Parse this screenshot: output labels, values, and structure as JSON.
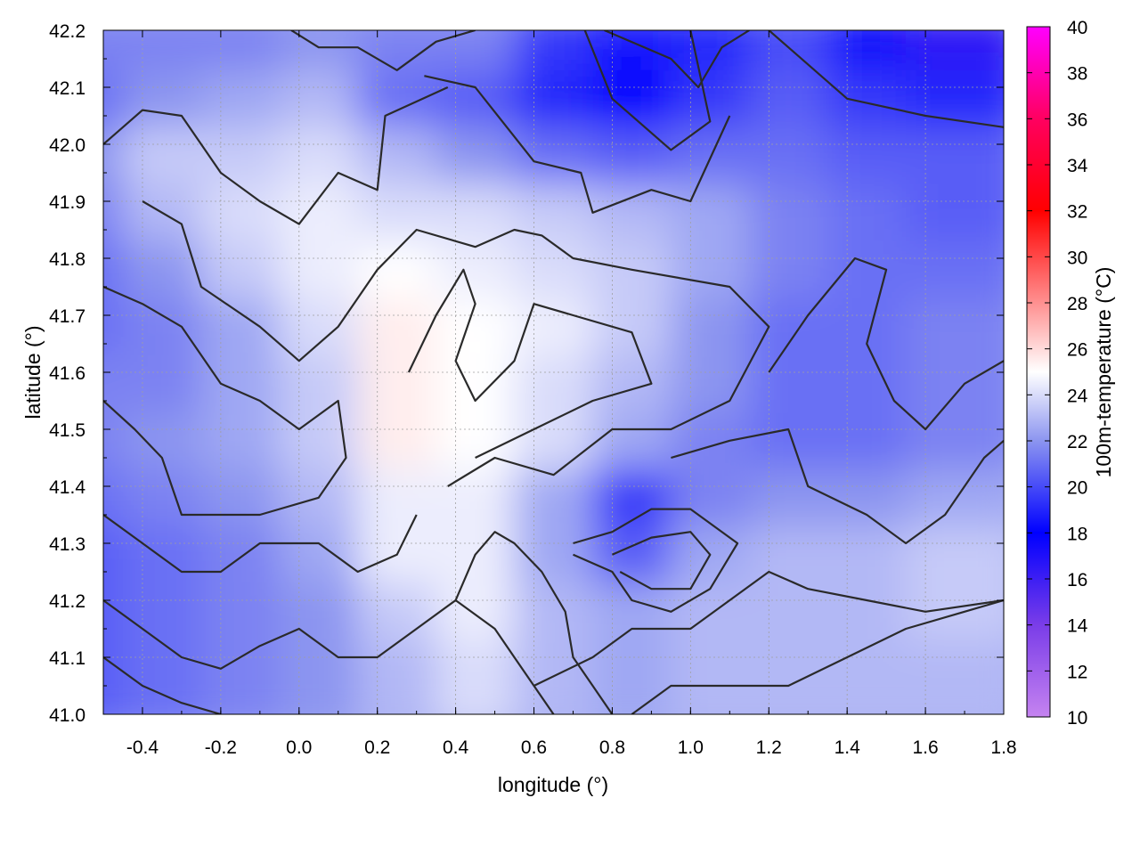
{
  "chart_data": {
    "type": "heatmap",
    "title": "",
    "xlabel": "longitude (°)",
    "ylabel": "latitude (°)",
    "colorbar_label": "100m-temperature (°C)",
    "xlim": [
      -0.5,
      1.8
    ],
    "ylim": [
      41.0,
      42.2
    ],
    "clim": [
      10,
      40
    ],
    "grid": true,
    "x_ticks": [
      "-0.4",
      "-0.2",
      "0.0",
      "0.2",
      "0.4",
      "0.6",
      "0.8",
      "1.0",
      "1.2",
      "1.4",
      "1.6",
      "1.8"
    ],
    "x_tick_values": [
      -0.4,
      -0.2,
      0.0,
      0.2,
      0.4,
      0.6,
      0.8,
      1.0,
      1.2,
      1.4,
      1.6,
      1.8
    ],
    "y_ticks": [
      "41.0",
      "41.1",
      "41.2",
      "41.3",
      "41.4",
      "41.5",
      "41.6",
      "41.7",
      "41.8",
      "41.9",
      "42.0",
      "42.1",
      "42.2"
    ],
    "y_tick_values": [
      41.0,
      41.1,
      41.2,
      41.3,
      41.4,
      41.5,
      41.6,
      41.7,
      41.8,
      41.9,
      42.0,
      42.1,
      42.2
    ],
    "colorbar_ticks": [
      "10",
      "12",
      "14",
      "16",
      "18",
      "20",
      "22",
      "24",
      "26",
      "28",
      "30",
      "32",
      "34",
      "36",
      "38",
      "40"
    ],
    "colorbar_tick_values": [
      10,
      12,
      14,
      16,
      18,
      20,
      22,
      24,
      26,
      28,
      30,
      32,
      34,
      36,
      38,
      40
    ],
    "colormap": [
      {
        "value": 10,
        "color": "#c583f0"
      },
      {
        "value": 14,
        "color": "#7a3de8"
      },
      {
        "value": 18,
        "color": "#0000ff"
      },
      {
        "value": 22,
        "color": "#8c95f0"
      },
      {
        "value": 25,
        "color": "#ffffff"
      },
      {
        "value": 28,
        "color": "#ff9090"
      },
      {
        "value": 32,
        "color": "#ff0000"
      },
      {
        "value": 36,
        "color": "#ff0060"
      },
      {
        "value": 40,
        "color": "#ff00ff"
      }
    ],
    "grid_columns": [
      -0.5,
      -0.3,
      -0.1,
      0.1,
      0.3,
      0.5,
      0.7,
      0.9,
      1.1,
      1.3,
      1.5,
      1.7
    ],
    "grid_rows": [
      42.15,
      42.05,
      41.95,
      41.85,
      41.75,
      41.65,
      41.55,
      41.45,
      41.35,
      41.25,
      41.15,
      41.05
    ],
    "values": [
      [
        21.5,
        21.5,
        21.5,
        22.0,
        21.5,
        21.5,
        19.5,
        18.5,
        19.0,
        20.0,
        17.5,
        16.5
      ],
      [
        21.0,
        22.0,
        22.5,
        23.0,
        21.0,
        20.5,
        19.0,
        18.0,
        19.5,
        20.5,
        19.5,
        19.0
      ],
      [
        22.0,
        23.5,
        23.5,
        24.0,
        23.0,
        22.0,
        21.0,
        20.5,
        21.0,
        21.0,
        20.5,
        20.5
      ],
      [
        21.5,
        23.0,
        24.0,
        24.5,
        24.0,
        24.0,
        23.5,
        23.0,
        22.5,
        21.5,
        21.0,
        20.5
      ],
      [
        21.0,
        22.0,
        23.5,
        24.5,
        25.0,
        24.5,
        24.0,
        23.5,
        22.5,
        21.5,
        21.0,
        21.0
      ],
      [
        21.0,
        21.5,
        22.5,
        24.0,
        25.5,
        25.0,
        24.5,
        23.5,
        22.0,
        21.0,
        21.0,
        21.5
      ],
      [
        21.5,
        21.5,
        22.5,
        23.5,
        25.5,
        25.0,
        24.0,
        23.0,
        22.0,
        21.0,
        21.0,
        21.5
      ],
      [
        21.5,
        22.0,
        22.5,
        23.5,
        25.5,
        25.0,
        24.0,
        22.5,
        21.5,
        21.0,
        21.0,
        21.5
      ],
      [
        21.0,
        21.5,
        22.0,
        23.0,
        24.5,
        24.5,
        22.5,
        19.5,
        21.5,
        22.0,
        22.0,
        22.5
      ],
      [
        20.5,
        21.0,
        21.5,
        22.5,
        24.5,
        24.5,
        22.5,
        20.5,
        22.5,
        23.0,
        23.0,
        23.5
      ],
      [
        20.5,
        21.0,
        21.5,
        22.0,
        23.5,
        24.5,
        23.0,
        22.5,
        23.0,
        23.0,
        23.0,
        23.5
      ],
      [
        20.5,
        21.0,
        21.5,
        22.0,
        23.0,
        24.0,
        23.0,
        22.5,
        23.0,
        23.0,
        23.0,
        23.0
      ]
    ],
    "contours": [
      [
        [
          -0.02,
          42.2
        ],
        [
          0.05,
          42.17
        ],
        [
          0.15,
          42.17
        ],
        [
          0.25,
          42.13
        ],
        [
          0.35,
          42.18
        ],
        [
          0.45,
          42.2
        ]
      ],
      [
        [
          0.78,
          42.2
        ],
        [
          0.95,
          42.15
        ],
        [
          1.02,
          42.1
        ],
        [
          1.08,
          42.17
        ],
        [
          1.15,
          42.2
        ]
      ],
      [
        [
          1.2,
          42.2
        ],
        [
          1.4,
          42.08
        ],
        [
          1.6,
          42.05
        ],
        [
          1.8,
          42.03
        ]
      ],
      [
        [
          -0.5,
          42.0
        ],
        [
          -0.4,
          42.06
        ],
        [
          -0.3,
          42.05
        ],
        [
          -0.2,
          41.95
        ],
        [
          -0.1,
          41.9
        ],
        [
          0.0,
          41.86
        ],
        [
          0.1,
          41.95
        ],
        [
          0.2,
          41.92
        ],
        [
          0.22,
          42.05
        ],
        [
          0.38,
          42.1
        ]
      ],
      [
        [
          0.32,
          42.12
        ],
        [
          0.45,
          42.1
        ],
        [
          0.6,
          41.97
        ],
        [
          0.72,
          41.95
        ],
        [
          0.75,
          41.88
        ],
        [
          0.9,
          41.92
        ],
        [
          1.0,
          41.9
        ],
        [
          1.1,
          42.05
        ]
      ],
      [
        [
          0.73,
          42.2
        ],
        [
          0.8,
          42.08
        ],
        [
          0.95,
          41.99
        ],
        [
          1.05,
          42.04
        ],
        [
          1.0,
          42.2
        ]
      ],
      [
        [
          -0.4,
          41.9
        ],
        [
          -0.3,
          41.86
        ],
        [
          -0.25,
          41.75
        ],
        [
          -0.1,
          41.68
        ],
        [
          0.0,
          41.62
        ],
        [
          0.1,
          41.68
        ],
        [
          0.2,
          41.78
        ],
        [
          0.3,
          41.85
        ],
        [
          0.45,
          41.82
        ],
        [
          0.55,
          41.85
        ],
        [
          0.62,
          41.84
        ],
        [
          0.7,
          41.8
        ],
        [
          0.85,
          41.78
        ],
        [
          1.1,
          41.75
        ],
        [
          1.2,
          41.68
        ],
        [
          1.1,
          41.55
        ],
        [
          0.95,
          41.5
        ],
        [
          0.8,
          41.5
        ],
        [
          0.65,
          41.42
        ],
        [
          0.5,
          41.45
        ],
        [
          0.38,
          41.4
        ]
      ],
      [
        [
          0.28,
          41.6
        ],
        [
          0.35,
          41.7
        ],
        [
          0.42,
          41.78
        ],
        [
          0.45,
          41.72
        ],
        [
          0.4,
          41.62
        ],
        [
          0.45,
          41.55
        ],
        [
          0.55,
          41.62
        ],
        [
          0.6,
          41.72
        ],
        [
          0.7,
          41.7
        ],
        [
          0.85,
          41.67
        ],
        [
          0.9,
          41.58
        ],
        [
          0.75,
          41.55
        ],
        [
          0.6,
          41.5
        ],
        [
          0.45,
          41.45
        ]
      ],
      [
        [
          -0.5,
          41.75
        ],
        [
          -0.4,
          41.72
        ],
        [
          -0.3,
          41.68
        ],
        [
          -0.2,
          41.58
        ],
        [
          -0.1,
          41.55
        ],
        [
          0.0,
          41.5
        ],
        [
          0.1,
          41.55
        ],
        [
          0.12,
          41.45
        ],
        [
          0.05,
          41.38
        ],
        [
          -0.1,
          41.35
        ],
        [
          -0.3,
          41.35
        ],
        [
          -0.35,
          41.45
        ],
        [
          -0.42,
          41.5
        ],
        [
          -0.5,
          41.55
        ]
      ],
      [
        [
          1.2,
          41.6
        ],
        [
          1.3,
          41.7
        ],
        [
          1.42,
          41.8
        ],
        [
          1.5,
          41.78
        ],
        [
          1.45,
          41.65
        ],
        [
          1.52,
          41.55
        ],
        [
          1.6,
          41.5
        ],
        [
          1.7,
          41.58
        ],
        [
          1.8,
          41.62
        ]
      ],
      [
        [
          0.95,
          41.45
        ],
        [
          1.1,
          41.48
        ],
        [
          1.25,
          41.5
        ],
        [
          1.3,
          41.4
        ],
        [
          1.45,
          41.35
        ],
        [
          1.55,
          41.3
        ],
        [
          1.65,
          41.35
        ],
        [
          1.75,
          41.45
        ],
        [
          1.8,
          41.48
        ]
      ],
      [
        [
          -0.5,
          41.35
        ],
        [
          -0.4,
          41.3
        ],
        [
          -0.3,
          41.25
        ],
        [
          -0.2,
          41.25
        ],
        [
          -0.1,
          41.3
        ],
        [
          0.05,
          41.3
        ],
        [
          0.15,
          41.25
        ],
        [
          0.25,
          41.28
        ],
        [
          0.3,
          41.35
        ]
      ],
      [
        [
          -0.5,
          41.2
        ],
        [
          -0.4,
          41.15
        ],
        [
          -0.3,
          41.1
        ],
        [
          -0.2,
          41.08
        ],
        [
          -0.1,
          41.12
        ],
        [
          0.0,
          41.15
        ],
        [
          0.1,
          41.1
        ],
        [
          0.2,
          41.1
        ],
        [
          0.3,
          41.15
        ],
        [
          0.4,
          41.2
        ],
        [
          0.5,
          41.15
        ],
        [
          0.55,
          41.1
        ],
        [
          0.6,
          41.05
        ],
        [
          0.65,
          41.0
        ]
      ],
      [
        [
          -0.5,
          41.1
        ],
        [
          -0.4,
          41.05
        ],
        [
          -0.3,
          41.02
        ],
        [
          -0.2,
          41.0
        ]
      ],
      [
        [
          0.7,
          41.3
        ],
        [
          0.8,
          41.32
        ],
        [
          0.9,
          41.36
        ],
        [
          1.0,
          41.36
        ],
        [
          1.12,
          41.3
        ],
        [
          1.05,
          41.22
        ],
        [
          0.95,
          41.18
        ],
        [
          0.85,
          41.2
        ],
        [
          0.8,
          41.25
        ],
        [
          0.7,
          41.28
        ]
      ],
      [
        [
          0.8,
          41.28
        ],
        [
          0.9,
          41.31
        ],
        [
          1.0,
          41.32
        ],
        [
          1.05,
          41.28
        ],
        [
          1.0,
          41.22
        ],
        [
          0.9,
          41.22
        ],
        [
          0.82,
          41.25
        ]
      ],
      [
        [
          0.6,
          41.05
        ],
        [
          0.75,
          41.1
        ],
        [
          0.85,
          41.15
        ],
        [
          1.0,
          41.15
        ],
        [
          1.1,
          41.2
        ],
        [
          1.2,
          41.25
        ],
        [
          1.3,
          41.22
        ],
        [
          1.45,
          41.2
        ],
        [
          1.6,
          41.18
        ],
        [
          1.8,
          41.2
        ]
      ],
      [
        [
          0.85,
          41.0
        ],
        [
          0.95,
          41.05
        ],
        [
          1.1,
          41.05
        ],
        [
          1.25,
          41.05
        ],
        [
          1.4,
          41.1
        ],
        [
          1.55,
          41.15
        ],
        [
          1.7,
          41.18
        ],
        [
          1.8,
          41.2
        ]
      ],
      [
        [
          0.4,
          41.2
        ],
        [
          0.45,
          41.28
        ],
        [
          0.5,
          41.32
        ],
        [
          0.55,
          41.3
        ],
        [
          0.62,
          41.25
        ],
        [
          0.68,
          41.18
        ],
        [
          0.7,
          41.1
        ],
        [
          0.75,
          41.05
        ],
        [
          0.8,
          41.0
        ]
      ]
    ]
  }
}
